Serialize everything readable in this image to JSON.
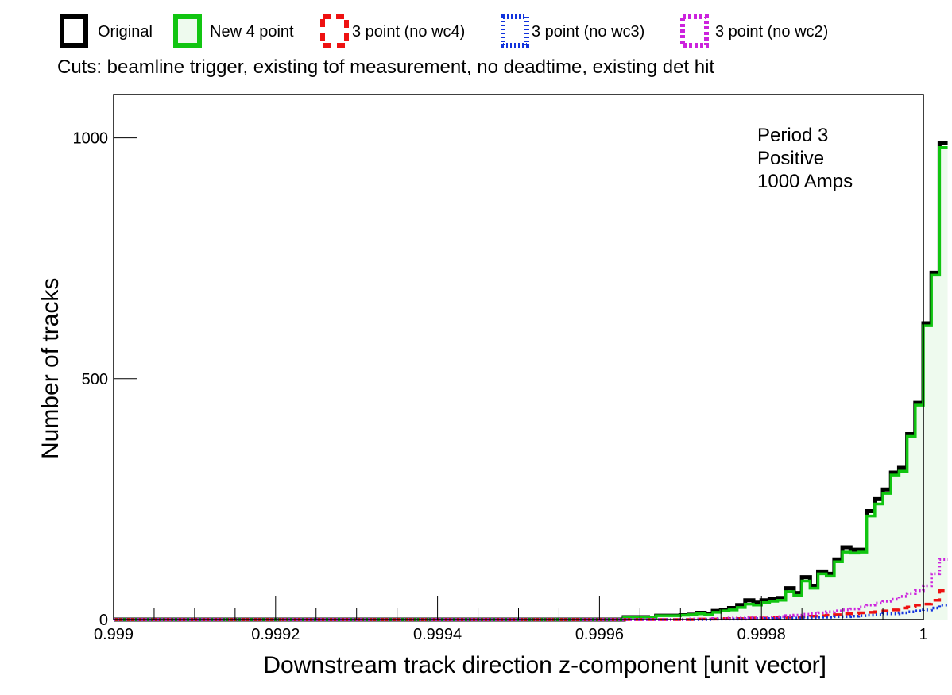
{
  "chart_data": {
    "type": "step",
    "subtitle": "Cuts: beamline trigger, existing tof measurement, no deadtime, existing det hit",
    "xlabel": "Downstream track direction z-component [unit vector]",
    "ylabel": "Number of tracks",
    "xlim": [
      0.999,
      1.0
    ],
    "ylim": [
      0,
      1090
    ],
    "x_ticks": [
      0.999,
      0.9992,
      0.9994,
      0.9996,
      0.9998,
      1
    ],
    "x_tick_labels": [
      "0.999",
      "0.9992",
      "0.9994",
      "0.9996",
      "0.9998",
      "1"
    ],
    "y_ticks": [
      0,
      500,
      1000
    ],
    "y_tick_labels": [
      "0",
      "500",
      "1000"
    ],
    "legend_position": "top",
    "annotation": [
      "Period 3",
      "Positive",
      "1000 Amps"
    ],
    "bin_edges_start": 0.99963,
    "bin_width": 1e-05,
    "series": [
      {
        "name": "Original",
        "color": "#000000",
        "style": "solid",
        "fill": "none",
        "values": [
          5,
          5,
          5,
          4,
          8,
          8,
          8,
          9,
          10,
          14,
          12,
          18,
          20,
          24,
          30,
          40,
          35,
          40,
          42,
          45,
          65,
          55,
          88,
          70,
          100,
          95,
          125,
          150,
          145,
          145,
          225,
          250,
          270,
          305,
          315,
          385,
          450,
          615,
          720,
          990
        ]
      },
      {
        "name": "New 4 point",
        "color": "#11c511",
        "style": "solid",
        "fill": "#eefaee",
        "values": [
          5,
          5,
          5,
          4,
          8,
          8,
          8,
          9,
          10,
          12,
          10,
          15,
          18,
          20,
          25,
          32,
          30,
          35,
          38,
          40,
          58,
          50,
          80,
          65,
          95,
          90,
          120,
          140,
          138,
          140,
          215,
          240,
          262,
          300,
          308,
          380,
          445,
          610,
          715,
          980
        ]
      },
      {
        "name": "3 point (no wc4)",
        "color": "#ee1111",
        "style": "dashed",
        "fill": "none",
        "values": [
          0,
          0,
          0,
          0,
          0,
          0,
          0,
          0,
          0,
          1,
          1,
          1,
          2,
          2,
          2,
          3,
          3,
          3,
          4,
          4,
          5,
          5,
          6,
          7,
          8,
          9,
          10,
          12,
          12,
          14,
          15,
          16,
          18,
          20,
          24,
          26,
          30,
          32,
          40,
          60
        ]
      },
      {
        "name": "3 point (no wc3)",
        "color": "#1133dd",
        "style": "dotted",
        "fill": "none",
        "values": [
          0,
          0,
          0,
          0,
          0,
          0,
          0,
          0,
          0,
          0,
          0,
          1,
          1,
          1,
          1,
          2,
          2,
          2,
          2,
          3,
          3,
          3,
          4,
          4,
          5,
          5,
          6,
          6,
          7,
          8,
          9,
          10,
          12,
          12,
          14,
          16,
          18,
          20,
          24,
          30
        ]
      },
      {
        "name": "3 point (no wc2)",
        "color": "#cc22dd",
        "style": "dotted",
        "fill": "none",
        "values": [
          0,
          0,
          0,
          0,
          0,
          0,
          0,
          0,
          1,
          1,
          1,
          2,
          2,
          3,
          3,
          4,
          4,
          5,
          5,
          6,
          8,
          9,
          11,
          12,
          14,
          16,
          18,
          20,
          22,
          26,
          30,
          34,
          38,
          42,
          48,
          54,
          60,
          70,
          95,
          125
        ]
      }
    ]
  }
}
